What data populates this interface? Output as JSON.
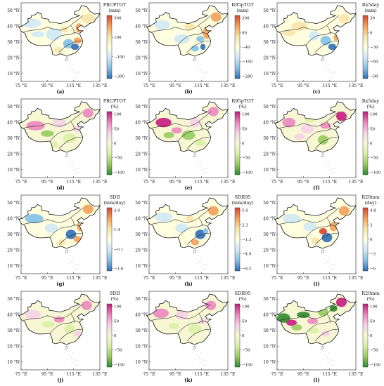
{
  "axes": {
    "x_ticks": [
      "75 °E",
      "95 °E",
      "115 °E",
      "135 °E"
    ],
    "y_ticks": [
      "50 °N",
      "40 °N",
      "30 °N",
      "20 °N",
      "10 °N"
    ]
  },
  "colors": {
    "div_pos_high": "#d8452a",
    "div_pos_mid": "#f2a05a",
    "div_pos_low": "#f9e3a8",
    "div_neu": "#ffffe0",
    "div_neg_low": "#cfe9f6",
    "div_neg_mid": "#83c1e8",
    "div_neg_high": "#2f6fb8",
    "pg_pos_high": "#c51b7d",
    "pg_pos_mid": "#ec86c0",
    "pg_pos_low": "#f7d0e6",
    "pg_neu": "#f7f7d4",
    "pg_neg_low": "#d9efa6",
    "pg_neg_mid": "#95cc5e",
    "pg_neg_high": "#2e8b2e"
  },
  "panels": [
    {
      "label": "(a)",
      "index": "PRCPTOT",
      "unit": "(mm)",
      "ticks": [
        "300",
        "100",
        "−100",
        "−300"
      ],
      "scheme": "div"
    },
    {
      "label": "(b)",
      "index": "R95pTOT",
      "unit": "(mm)",
      "ticks": [
        "200",
        "80",
        "−40",
        "−160",
        "−280"
      ],
      "scheme": "div"
    },
    {
      "label": "(c)",
      "index": "Rx5day",
      "unit": "(mm)",
      "ticks": [
        "30",
        "0",
        "−30",
        "−60",
        "−90"
      ],
      "scheme": "div"
    },
    {
      "label": "(d)",
      "index": "PRCPTOT",
      "unit": "(%)",
      "ticks": [
        "100",
        "50",
        "0",
        "−50",
        "−100"
      ],
      "scheme": "pg"
    },
    {
      "label": "(e)",
      "index": "R95pTOT",
      "unit": "(%)",
      "ticks": [
        "100",
        "50",
        "0",
        "−50",
        "−100"
      ],
      "scheme": "pg"
    },
    {
      "label": "(f)",
      "index": "Rx5day",
      "unit": "(%)",
      "ticks": [
        "100",
        "50",
        "0",
        "−50",
        "−100"
      ],
      "scheme": "pg"
    },
    {
      "label": "(g)",
      "index": "SDII",
      "unit": "(mm/day)",
      "ticks": [
        "2.9",
        "1.4",
        "−0.1",
        "−1.6"
      ],
      "scheme": "div"
    },
    {
      "label": "(h)",
      "index": "SDII95",
      "unit": "(mm/day)",
      "ticks": [
        "5.9",
        "2.3",
        "−1.3",
        "−4.9",
        "−8.5"
      ],
      "scheme": "div"
    },
    {
      "label": "(i)",
      "index": "R20mm",
      "unit": "(day)",
      "ticks": [
        "4.8",
        "3",
        "0",
        "−3",
        "−6"
      ],
      "scheme": "div"
    },
    {
      "label": "(j)",
      "index": "SDII",
      "unit": "(%)",
      "ticks": [
        "100",
        "50",
        "0",
        "−50",
        "−100"
      ],
      "scheme": "pg"
    },
    {
      "label": "(k)",
      "index": "SDII95",
      "unit": "(%)",
      "ticks": [
        "100",
        "50",
        "0",
        "−50",
        "−100"
      ],
      "scheme": "pg"
    },
    {
      "label": "(l)",
      "index": "R20mm",
      "unit": "(%)",
      "ticks": [
        "100",
        "50",
        "0",
        "−50",
        "−100"
      ],
      "scheme": "pg"
    }
  ]
}
